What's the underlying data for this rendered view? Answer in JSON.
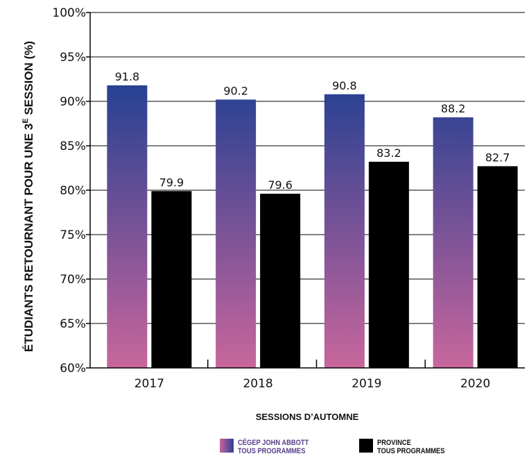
{
  "chart_data": {
    "type": "bar",
    "categories": [
      "2017",
      "2018",
      "2019",
      "2020"
    ],
    "series": [
      {
        "name": "CÉGEP JOHN ABBOTT TOUS PROGRAMMES",
        "values": [
          91.8,
          90.2,
          90.8,
          88.2
        ],
        "color_top": "#1d3f92",
        "color_bottom": "#c8669c"
      },
      {
        "name": "PROVINCE TOUS PROGRAMMES",
        "values": [
          79.9,
          79.6,
          83.2,
          82.7
        ],
        "color": "#000000"
      }
    ],
    "data_labels": [
      [
        "91.8",
        "90.2",
        "90.8",
        "88.2"
      ],
      [
        "79.9",
        "79.6",
        "83.2",
        "82.7"
      ]
    ],
    "ylim": [
      60,
      100
    ],
    "yticks": [
      60,
      65,
      70,
      75,
      80,
      85,
      90,
      95,
      100
    ],
    "ytick_labels": [
      "60%",
      "65%",
      "70%",
      "75%",
      "80%",
      "85%",
      "90%",
      "95%",
      "100%"
    ],
    "ylabel": "ÉTUDIANTS RETOURNANT POUR UNE 3E SESSION (%)",
    "xlabel": "SESSIONS D’AUTOMNE",
    "grid": true,
    "legend_position": "bottom"
  },
  "legend": {
    "cegep_line1": "CÉGEP JOHN ABBOTT",
    "cegep_line2": "TOUS PROGRAMMES",
    "province_line1": "PROVINCE",
    "province_line2": "TOUS PROGRAMMES"
  }
}
